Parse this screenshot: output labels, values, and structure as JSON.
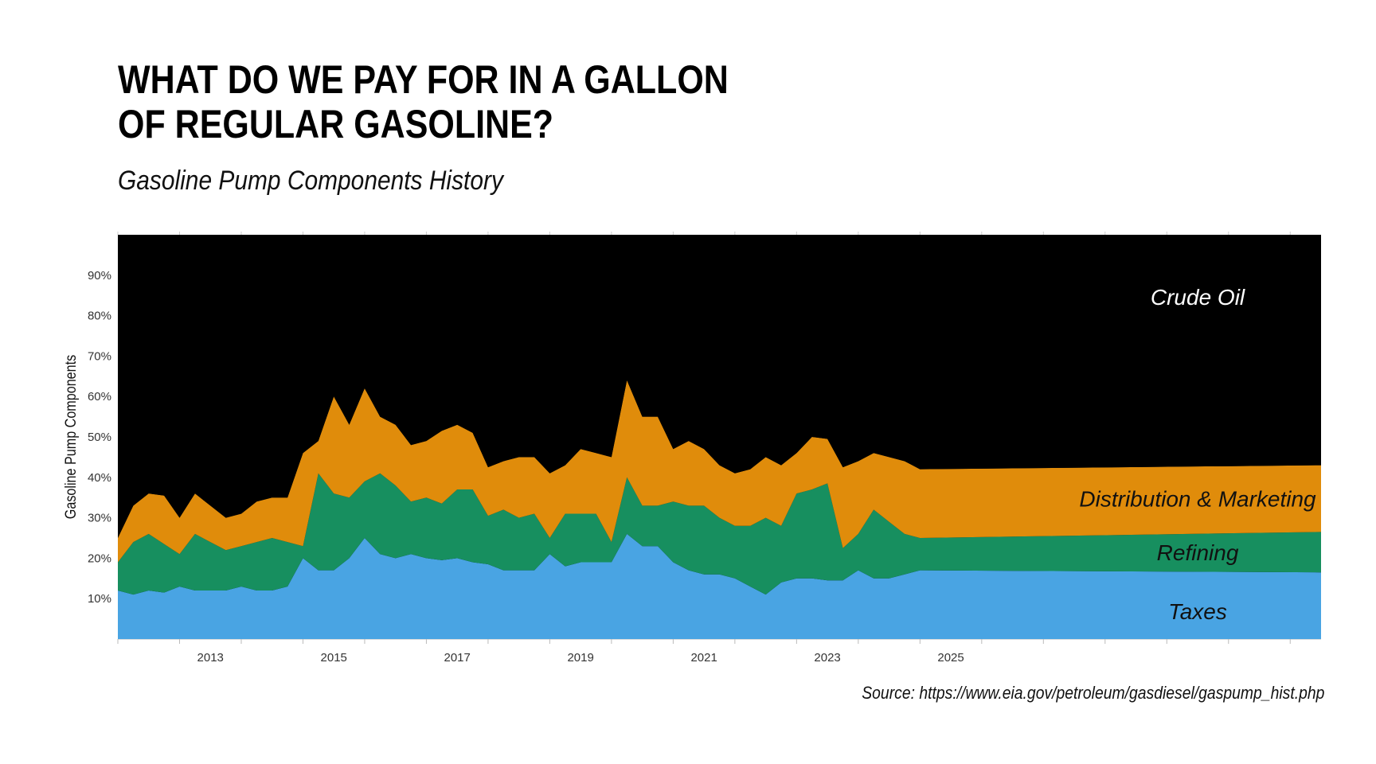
{
  "header": {
    "title_line1": "WHAT DO WE PAY FOR IN A GALLON",
    "title_line2": "OF REGULAR GASOLINE?",
    "subtitle": "Gasoline Pump Components History"
  },
  "footer": {
    "source": "Source: https://www.eia.gov/petroleum/gasdiesel/gaspump_hist.php"
  },
  "chart_data": {
    "type": "area",
    "stacked": true,
    "ylabel": "Gasoline Pump Components",
    "xlim": [
      2012,
      2031.5
    ],
    "ylim": [
      0,
      100
    ],
    "x_ticks": [
      "2013",
      "2015",
      "2017",
      "2019",
      "2021",
      "2023",
      "2025"
    ],
    "y_ticks": [
      "10%",
      "20%",
      "30%",
      "40%",
      "50%",
      "60%",
      "70%",
      "80%",
      "90%"
    ],
    "grid": false,
    "background": "#000000",
    "x": [
      2012.0,
      2012.25,
      2012.5,
      2012.75,
      2013.0,
      2013.25,
      2013.5,
      2013.75,
      2014.0,
      2014.25,
      2014.5,
      2014.75,
      2015.0,
      2015.25,
      2015.5,
      2015.75,
      2016.0,
      2016.25,
      2016.5,
      2016.75,
      2017.0,
      2017.25,
      2017.5,
      2017.75,
      2018.0,
      2018.25,
      2018.5,
      2018.75,
      2019.0,
      2019.25,
      2019.5,
      2019.75,
      2020.0,
      2020.25,
      2020.5,
      2020.75,
      2021.0,
      2021.25,
      2021.5,
      2021.75,
      2022.0,
      2022.25,
      2022.5,
      2022.75,
      2023.0,
      2023.25,
      2023.5,
      2023.75,
      2024.0,
      2024.25,
      2024.5,
      2024.75,
      2025.0,
      2031.5
    ],
    "series": [
      {
        "name": "Taxes",
        "color": "#49A4E3",
        "label_color": "#111111",
        "values": [
          12,
          11,
          12,
          11.5,
          13,
          12,
          12,
          12,
          13,
          12,
          12,
          13,
          20,
          17,
          17,
          20,
          25,
          21,
          20,
          21,
          20,
          19.5,
          20,
          19,
          18.5,
          17,
          17,
          17,
          21,
          18,
          19,
          19,
          19,
          26,
          23,
          23,
          19,
          17,
          16,
          16,
          15,
          13,
          11,
          14,
          15,
          15,
          14.5,
          14.5,
          17,
          15,
          15,
          16,
          17,
          16.5
        ]
      },
      {
        "name": "Refining",
        "color": "#178F5F",
        "label_color": "#111111",
        "values": [
          7,
          13,
          14,
          12,
          8,
          14,
          12,
          10,
          10,
          12,
          13,
          11,
          3,
          24,
          19,
          15,
          14,
          20,
          18,
          13,
          15,
          14,
          17,
          18,
          12,
          15,
          13,
          14,
          4,
          13,
          12,
          12,
          5,
          14,
          10,
          10,
          15,
          16,
          17,
          14,
          13,
          15,
          19,
          14,
          21,
          22,
          24,
          8,
          9,
          17,
          14,
          10,
          8,
          10
        ]
      },
      {
        "name": "Distribution & Marketing",
        "color": "#E08C0B",
        "label_color": "#111111",
        "values": [
          6,
          9,
          10,
          12,
          9,
          10,
          9,
          8,
          8,
          10,
          10,
          11,
          23,
          8,
          24,
          18,
          23,
          14,
          15,
          14,
          14,
          18,
          16,
          14,
          12,
          12,
          15,
          14,
          16,
          12,
          16,
          15,
          21,
          24,
          22,
          22,
          13,
          16,
          14,
          13,
          13,
          14,
          15,
          15,
          10,
          13,
          11,
          20,
          18,
          14,
          16,
          18,
          17,
          16.5
        ]
      },
      {
        "name": "Crude Oil",
        "color": "#000000",
        "label_color": "#ffffff",
        "values": [
          75,
          67,
          64,
          64.5,
          70,
          64,
          67,
          70,
          69,
          66,
          65,
          65,
          54,
          51,
          40,
          47,
          38,
          45,
          47,
          52,
          51,
          48.5,
          47,
          49,
          57.5,
          56,
          55,
          55,
          59,
          57,
          53,
          54,
          55,
          36,
          45,
          45,
          53,
          51,
          53,
          57,
          59,
          58,
          55,
          57,
          54,
          50,
          50.5,
          57.5,
          56,
          54,
          55,
          56,
          58,
          57
        ]
      }
    ]
  }
}
